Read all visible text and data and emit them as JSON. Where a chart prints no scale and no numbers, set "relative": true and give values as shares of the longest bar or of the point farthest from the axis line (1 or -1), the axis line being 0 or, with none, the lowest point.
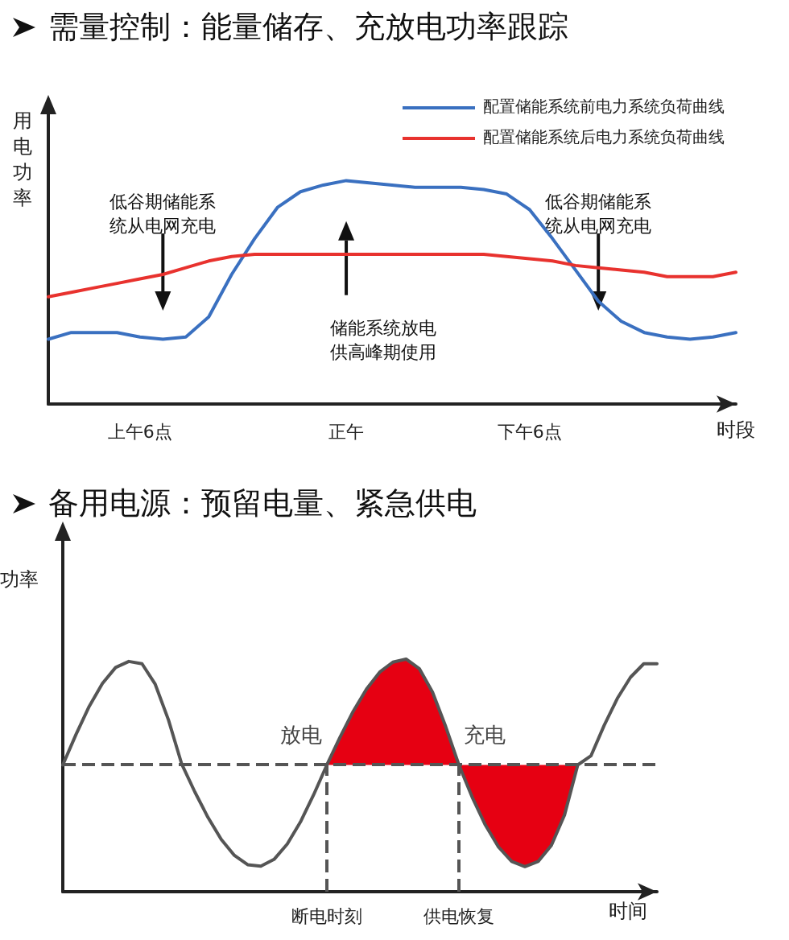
{
  "chart_data": [
    {
      "type": "line",
      "title": "需量控制：能量储存、充放电功率跟踪",
      "xlabel": "时段",
      "ylabel": "用电功率",
      "relative": true,
      "legend": "top right",
      "marker": "none",
      "grid": false,
      "categories": [
        null,
        null,
        null,
        null,
        "上午6点",
        null,
        null,
        null,
        null,
        null,
        null,
        null,
        null,
        "正午",
        null,
        null,
        null,
        null,
        null,
        null,
        null,
        "下午6点",
        null,
        null,
        null,
        null,
        null,
        null,
        null,
        null,
        null
      ],
      "series": [
        {
          "name": "配置储能系统前电力系统负荷曲线",
          "color": "#3a70c0",
          "values": [
            0.29,
            0.32,
            0.32,
            0.32,
            0.3,
            0.29,
            0.3,
            0.39,
            0.58,
            0.74,
            0.88,
            0.95,
            0.98,
            1.0,
            0.99,
            0.98,
            0.97,
            0.97,
            0.97,
            0.96,
            0.94,
            0.87,
            0.74,
            0.6,
            0.46,
            0.37,
            0.32,
            0.3,
            0.29,
            0.3,
            0.32
          ]
        },
        {
          "name": "配置储能系统后电力系统负荷曲线",
          "color": "#e8322e",
          "values": [
            0.48,
            0.5,
            0.52,
            0.54,
            0.56,
            0.58,
            0.61,
            0.64,
            0.66,
            0.67,
            0.67,
            0.67,
            0.67,
            0.67,
            0.67,
            0.67,
            0.67,
            0.67,
            0.67,
            0.67,
            0.66,
            0.65,
            0.64,
            0.62,
            0.61,
            0.6,
            0.59,
            0.57,
            0.57,
            0.57,
            0.59
          ]
        }
      ],
      "annotations": [
        "低谷期储能系统从电网充电",
        "储能系统放电供高峰期使用",
        "低谷期储能系统从电网充电"
      ]
    },
    {
      "type": "line",
      "title": "备用电源：预留电量、紧急供电",
      "xlabel": "时间",
      "ylabel": "功率",
      "relative": true,
      "legend": false,
      "marker": "none",
      "grid": false,
      "categories": [
        null,
        null,
        null,
        null,
        null,
        null,
        null,
        null,
        null,
        null,
        null,
        null,
        null,
        null,
        null,
        null,
        null,
        null,
        null,
        null,
        "断电时刻",
        null,
        null,
        null,
        null,
        null,
        null,
        null,
        null,
        null,
        "供电恢复",
        null,
        null,
        null,
        null,
        null,
        null,
        null,
        null,
        null,
        null,
        null,
        null,
        null,
        null,
        null
      ],
      "series": [
        {
          "color": "#e60012",
          "values": [
            null,
            null,
            null,
            null,
            null,
            null,
            null,
            null,
            null,
            null,
            null,
            null,
            null,
            null,
            null,
            null,
            null,
            null,
            null,
            null,
            null,
            null,
            null,
            null,
            null,
            null,
            null,
            null,
            null,
            null,
            null,
            null,
            null,
            null,
            null,
            null,
            null,
            null,
            null,
            null,
            null,
            null,
            null,
            null,
            null,
            null
          ],
          "lower": [
            null,
            null,
            null,
            null,
            null,
            null,
            null,
            null,
            null,
            null,
            null,
            null,
            null,
            null,
            null,
            null,
            null,
            null,
            null,
            null,
            0.545,
            0.545,
            0.545,
            0.545,
            0.545,
            0.545,
            0.545,
            0.545,
            0.545,
            0.545,
            0.545,
            0.407,
            0.287,
            0.192,
            0.13,
            0.108,
            0.13,
            0.199,
            0.33,
            0.545,
            null,
            null,
            null,
            null,
            null,
            null
          ],
          "upper": [
            null,
            null,
            null,
            null,
            null,
            null,
            null,
            null,
            null,
            null,
            null,
            null,
            null,
            null,
            null,
            null,
            null,
            null,
            null,
            null,
            0.545,
            0.665,
            0.776,
            0.871,
            0.944,
            0.987,
            1.0,
            0.959,
            0.858,
            0.71,
            0.545,
            0.545,
            0.545,
            0.545,
            0.545,
            0.545,
            0.545,
            0.545,
            0.545,
            0.545,
            null,
            null,
            null,
            null,
            null,
            null
          ]
        },
        {
          "color": "#555555",
          "values": [
            0.545,
            0.676,
            0.797,
            0.895,
            0.964,
            0.99,
            0.98,
            0.892,
            0.739,
            0.55,
            0.429,
            0.319,
            0.225,
            0.156,
            0.116,
            0.11,
            0.139,
            0.205,
            0.3,
            0.417,
            0.545,
            0.665,
            0.776,
            0.871,
            0.944,
            0.987,
            1.0,
            0.959,
            0.858,
            0.71,
            0.545,
            0.407,
            0.287,
            0.192,
            0.13,
            0.108,
            0.13,
            0.199,
            0.33,
            0.545,
            0.584,
            0.715,
            0.831,
            0.922,
            0.98,
            0.98
          ]
        }
      ],
      "ref_lines": [
        {
          "axis": "y",
          "value": 0.545,
          "line_style": "dashed",
          "color": "#555555"
        },
        {
          "axis": "x",
          "value": "断电时刻",
          "line_style": "dashed",
          "color": "#555555"
        },
        {
          "axis": "x",
          "value": "供电恢复",
          "line_style": "dashed",
          "color": "#555555"
        }
      ],
      "annotations": [
        {
          "text": "放电",
          "x": "断电时刻",
          "y": 0.545
        },
        {
          "text": "充电",
          "x": "供电恢复",
          "y": 0.545
        }
      ]
    }
  ]
}
